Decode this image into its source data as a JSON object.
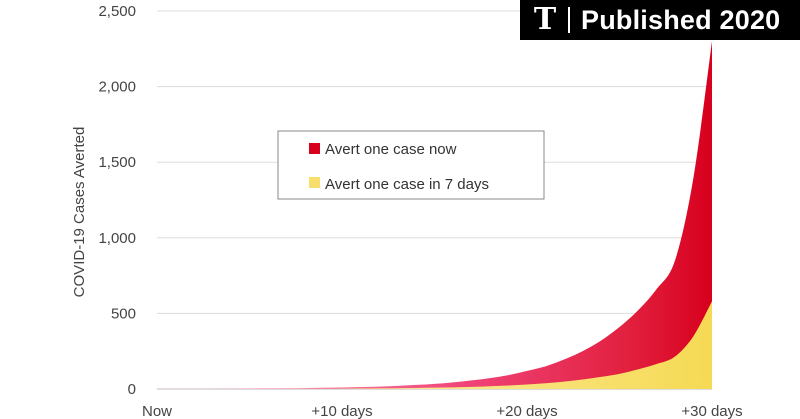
{
  "badge": {
    "logo_glyph": "T",
    "logo_icon": "nyt-logo-icon",
    "text": "Published 2020"
  },
  "chart_data": {
    "type": "area",
    "title": "",
    "xlabel": "",
    "ylabel": "COVID-19 Cases Averted",
    "x_ticks": [
      {
        "value": 0,
        "label": "Now"
      },
      {
        "value": 10,
        "label": "+10 days"
      },
      {
        "value": 20,
        "label": "+20 days"
      },
      {
        "value": 30,
        "label": "+30 days"
      }
    ],
    "y_ticks": [
      {
        "value": 0,
        "label": "0"
      },
      {
        "value": 500,
        "label": "500"
      },
      {
        "value": 1000,
        "label": "1,000"
      },
      {
        "value": 1500,
        "label": "1,500"
      },
      {
        "value": 2000,
        "label": "2,000"
      },
      {
        "value": 2500,
        "label": "2,500"
      }
    ],
    "xlim": [
      0,
      30
    ],
    "ylim": [
      0,
      2500
    ],
    "grid": "horizontal",
    "legend_position": "center",
    "x": [
      0,
      1,
      2,
      3,
      4,
      5,
      6,
      7,
      8,
      9,
      10,
      11,
      12,
      13,
      14,
      15,
      16,
      17,
      18,
      19,
      20,
      21,
      22,
      23,
      24,
      25,
      26,
      27,
      28,
      29,
      30
    ],
    "series": [
      {
        "name": "Avert one case now",
        "color": "#d7001d",
        "values": [
          1,
          1,
          1,
          2,
          2,
          3,
          4,
          5,
          6,
          8,
          10,
          13,
          16,
          21,
          27,
          34,
          44,
          57,
          72,
          92,
          120,
          150,
          195,
          250,
          320,
          410,
          520,
          660,
          850,
          1400,
          2300
        ]
      },
      {
        "name": "Avert one case in 7 days",
        "color": "#f6df6b",
        "values": [
          0,
          0,
          0,
          0,
          0,
          0,
          0,
          1,
          1,
          1,
          2,
          3,
          4,
          5,
          7,
          9,
          11,
          14,
          18,
          23,
          30,
          38,
          49,
          63,
          80,
          100,
          130,
          165,
          215,
          350,
          580
        ]
      }
    ]
  }
}
